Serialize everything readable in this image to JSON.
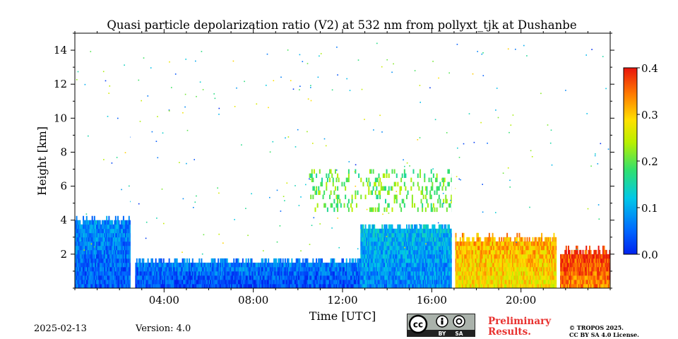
{
  "chart_data": {
    "type": "heatmap",
    "title": "Quasi particle depolarization ratio (V2) at 532 nm from pollyxt_tjk at Dushanbe",
    "xlabel": "Time [UTC]",
    "ylabel": "Height [km]",
    "xlim": [
      0,
      24
    ],
    "ylim": [
      0,
      15
    ],
    "x_ticks": [
      {
        "value": 4,
        "label": "04:00"
      },
      {
        "value": 8,
        "label": "08:00"
      },
      {
        "value": 12,
        "label": "12:00"
      },
      {
        "value": 16,
        "label": "16:00"
      },
      {
        "value": 20,
        "label": "20:00"
      }
    ],
    "y_ticks": [
      {
        "value": 2,
        "label": "2"
      },
      {
        "value": 4,
        "label": "4"
      },
      {
        "value": 6,
        "label": "6"
      },
      {
        "value": 8,
        "label": "8"
      },
      {
        "value": 10,
        "label": "10"
      },
      {
        "value": 12,
        "label": "12"
      },
      {
        "value": 14,
        "label": "14"
      }
    ],
    "colorbar": {
      "range": [
        0.0,
        0.4
      ],
      "ticks": [
        {
          "value": 0.0,
          "label": "0.0"
        },
        {
          "value": 0.1,
          "label": "0.1"
        },
        {
          "value": 0.2,
          "label": "0.2"
        },
        {
          "value": 0.3,
          "label": "0.3"
        },
        {
          "value": 0.4,
          "label": "0.4"
        }
      ],
      "colormap": "jet"
    },
    "data_gaps_hours": [
      [
        2.5,
        2.7
      ],
      [
        16.9,
        17.05
      ],
      [
        21.6,
        21.75
      ]
    ],
    "layers": [
      {
        "name": "boundary-layer-night",
        "t_start": 0,
        "t_end": 2.5,
        "top_km": 3.9,
        "value": 0.06
      },
      {
        "name": "boundary-layer-day",
        "t_start": 2.7,
        "t_end": 12.8,
        "top_km": 1.5,
        "value": 0.05
      },
      {
        "name": "convective-layer",
        "t_start": 12.8,
        "t_end": 16.9,
        "top_km": 3.5,
        "value": 0.09
      },
      {
        "name": "dust-layer-evening",
        "t_start": 17.05,
        "t_end": 21.6,
        "top_km": 2.8,
        "value": 0.3
      },
      {
        "name": "dust-layer-late",
        "t_start": 21.75,
        "t_end": 24,
        "top_km": 2.1,
        "value": 0.36
      },
      {
        "name": "elevated-aerosol",
        "t_start": 10.5,
        "t_end": 17,
        "bottom_km": 4.5,
        "top_km": 7,
        "value": 0.2
      }
    ]
  },
  "footer": {
    "date": "2025-02-13",
    "version": "Version: 4.0",
    "preliminary": [
      "Preliminary",
      "Results."
    ],
    "copyright": [
      "© TROPOS 2025.",
      "CC BY SA 4.0 License."
    ],
    "license_badge": {
      "cc": "cc",
      "by": "BY",
      "sa": "SA"
    }
  },
  "colors": {
    "background": "#ffffff",
    "preliminary_red": "#e8312f",
    "badge_bg": "#aab2ab",
    "badge_dark": "#222222"
  }
}
